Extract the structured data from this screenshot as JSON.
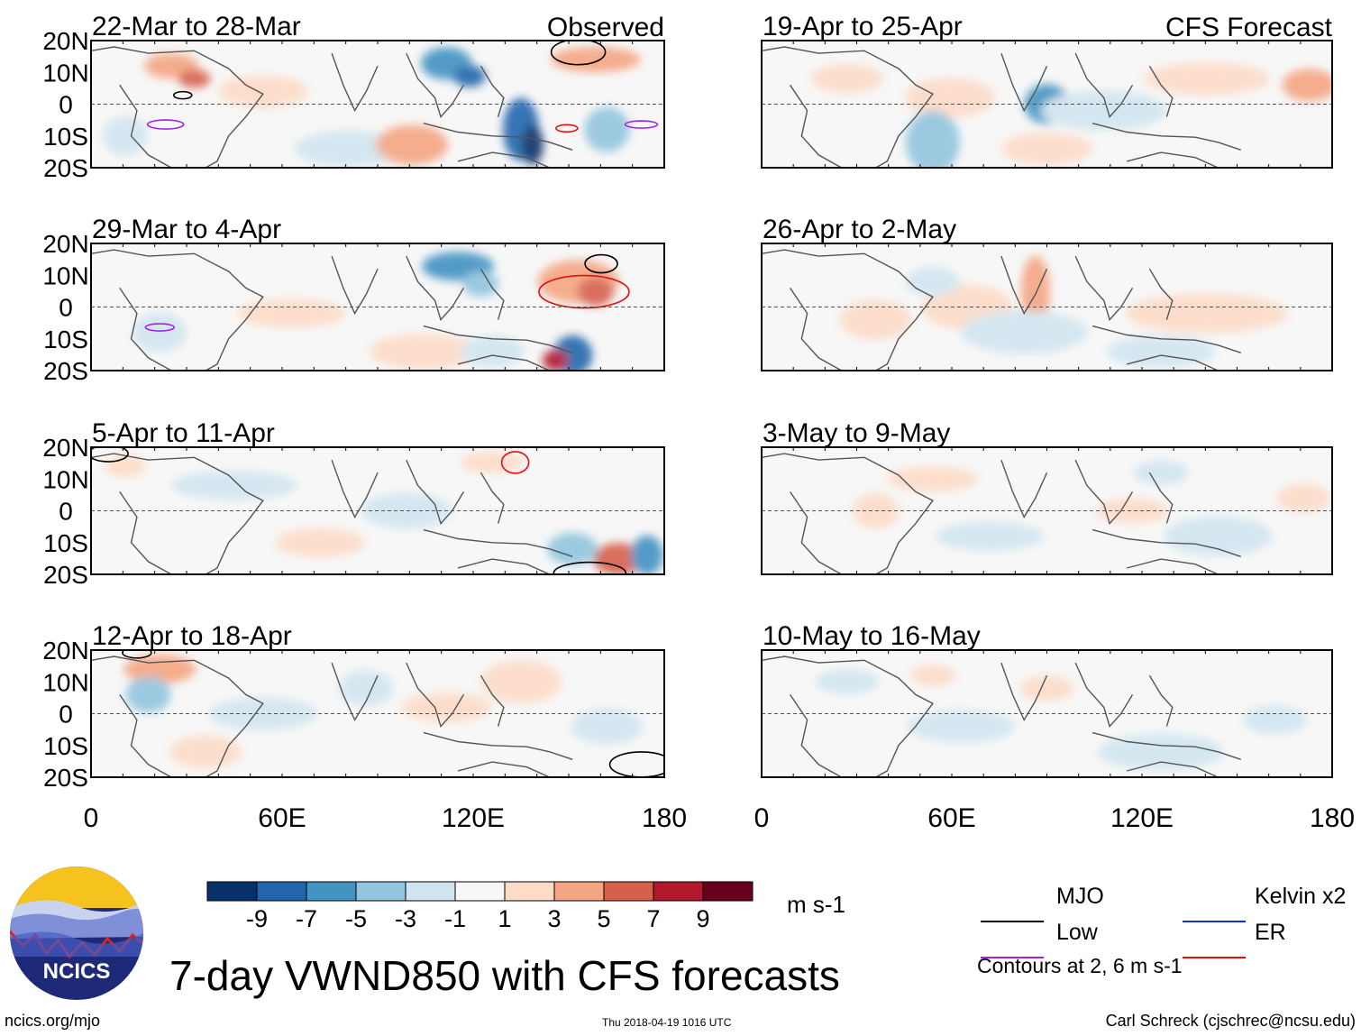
{
  "figure_title": "7-day VWND850 with CFS forecasts",
  "unit_label": "m s-1",
  "source_label": "ncics.org/mjo",
  "timestamp": "Thu 2018-04-19 1016 UTC",
  "author": "Carl Schreck (cjschrec@ncsu.edu)",
  "logo_text": "NCICS",
  "column_labels": {
    "observed": "Observed",
    "forecast": "CFS Forecast"
  },
  "contour_note": "Contours at 2, 6 m s-1",
  "legend": [
    {
      "label": "MJO",
      "color": "#000000"
    },
    {
      "label": "Kelvin x2",
      "color": "#1a2ee0"
    },
    {
      "label": "Low",
      "color": "#a020f0"
    },
    {
      "label": "ER",
      "color": "#e01010"
    }
  ],
  "colors": {
    "levels": [
      "#08306b",
      "#2166ac",
      "#4393c3",
      "#92c5de",
      "#d1e5f0",
      "#f7f7f7",
      "#fddbc7",
      "#f4a582",
      "#d6604d",
      "#b2182b",
      "#67001f"
    ]
  },
  "chart_data": {
    "type": "heatmap",
    "variable": "850-hPa meridional wind anomaly",
    "colorbar_ticks": [
      "-9",
      "-7",
      "-5",
      "-3",
      "-1",
      "1",
      "3",
      "5",
      "7",
      "9"
    ],
    "x_axis": {
      "ticks": [
        "0",
        "60E",
        "120E",
        "180"
      ],
      "range": [
        0,
        180
      ]
    },
    "y_axis": {
      "ticks": [
        "20N",
        "10N",
        "0",
        "10S",
        "20S"
      ],
      "range": [
        -20,
        20
      ]
    },
    "panels": [
      {
        "period": "22-Mar to 28-Mar",
        "column": "observed"
      },
      {
        "period": "29-Mar to 4-Apr",
        "column": "observed"
      },
      {
        "period": "5-Apr to 11-Apr",
        "column": "observed"
      },
      {
        "period": "12-Apr to 18-Apr",
        "column": "observed"
      },
      {
        "period": "19-Apr to 25-Apr",
        "column": "forecast"
      },
      {
        "period": "26-Apr to 2-May",
        "column": "forecast"
      },
      {
        "period": "3-May to 9-May",
        "column": "forecast"
      },
      {
        "period": "10-May to 16-May",
        "column": "forecast"
      }
    ]
  }
}
